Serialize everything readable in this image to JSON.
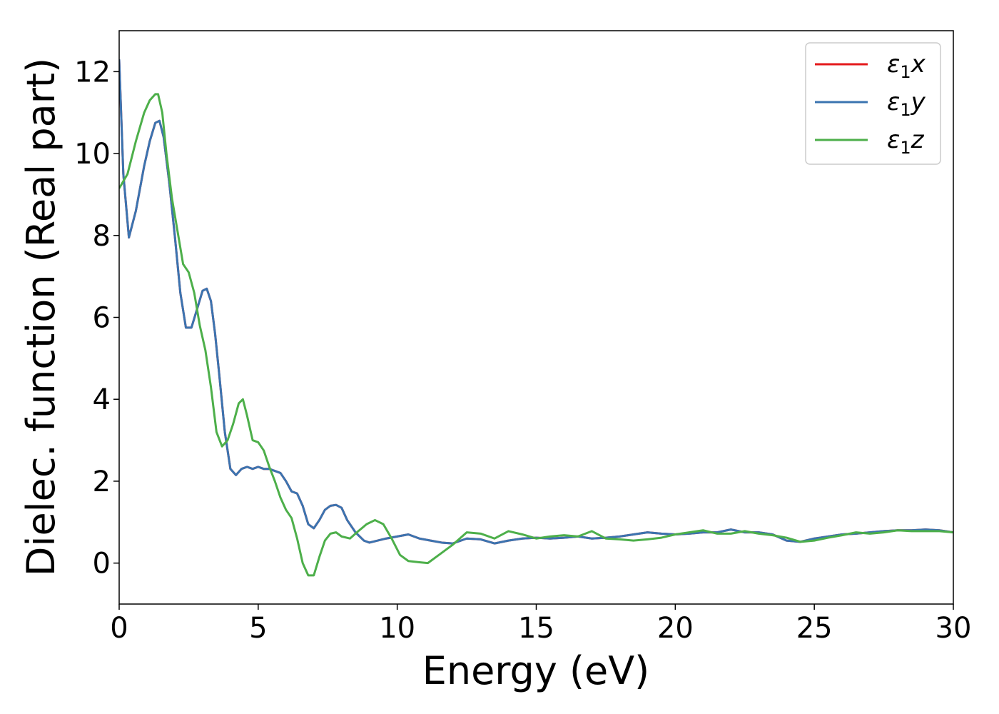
{
  "chart_data": {
    "type": "line",
    "title": "",
    "xlabel": "Energy (eV)",
    "ylabel": "Dielec. function (Real part)",
    "xlim": [
      0,
      30
    ],
    "ylim": [
      -1,
      13
    ],
    "xticks": [
      0,
      5,
      10,
      15,
      20,
      25,
      30
    ],
    "yticks": [
      0,
      2,
      4,
      6,
      8,
      10,
      12
    ],
    "grid": false,
    "legend_position": "top-right",
    "series": [
      {
        "name": "ε1x",
        "legend": {
          "base": "ε",
          "sub": "1",
          "var": "x"
        },
        "color": "#e41a1c",
        "x": [
          0,
          0.15,
          0.35,
          0.6,
          0.9,
          1.1,
          1.3,
          1.45,
          1.6,
          1.8,
          2.0,
          2.2,
          2.4,
          2.6,
          2.8,
          3.0,
          3.15,
          3.3,
          3.45,
          3.6,
          3.8,
          4.0,
          4.2,
          4.4,
          4.6,
          4.8,
          5.0,
          5.2,
          5.4,
          5.6,
          5.8,
          6.0,
          6.2,
          6.4,
          6.6,
          6.8,
          7.0,
          7.2,
          7.4,
          7.6,
          7.8,
          8.0,
          8.2,
          8.5,
          8.8,
          9.0,
          9.3,
          9.6,
          10.0,
          10.4,
          10.8,
          11.2,
          11.6,
          12.0,
          12.5,
          13.0,
          13.5,
          14.0,
          14.5,
          15.0,
          15.5,
          16.0,
          16.5,
          17.0,
          17.5,
          18.0,
          18.5,
          19.0,
          19.5,
          20.0,
          20.5,
          21.0,
          21.5,
          22.0,
          22.5,
          23.0,
          23.5,
          24.0,
          24.5,
          25.0,
          25.5,
          26.0,
          26.5,
          27.0,
          27.5,
          28.0,
          28.5,
          29.0,
          29.5,
          30.0
        ],
        "y": [
          12.3,
          9.5,
          7.95,
          8.6,
          9.7,
          10.3,
          10.75,
          10.8,
          10.4,
          9.3,
          8.0,
          6.6,
          5.75,
          5.75,
          6.2,
          6.65,
          6.7,
          6.4,
          5.6,
          4.6,
          3.2,
          2.3,
          2.15,
          2.3,
          2.35,
          2.3,
          2.35,
          2.3,
          2.3,
          2.25,
          2.2,
          2.0,
          1.75,
          1.7,
          1.4,
          0.95,
          0.85,
          1.05,
          1.3,
          1.4,
          1.42,
          1.35,
          1.05,
          0.75,
          0.55,
          0.5,
          0.55,
          0.6,
          0.65,
          0.7,
          0.6,
          0.55,
          0.5,
          0.48,
          0.6,
          0.58,
          0.48,
          0.55,
          0.6,
          0.62,
          0.6,
          0.62,
          0.65,
          0.6,
          0.62,
          0.65,
          0.7,
          0.75,
          0.72,
          0.7,
          0.72,
          0.75,
          0.75,
          0.82,
          0.75,
          0.75,
          0.7,
          0.55,
          0.52,
          0.6,
          0.65,
          0.7,
          0.72,
          0.75,
          0.78,
          0.8,
          0.8,
          0.82,
          0.8,
          0.75
        ]
      },
      {
        "name": "ε1y",
        "legend": {
          "base": "ε",
          "sub": "1",
          "var": "y"
        },
        "color": "#3b74b0",
        "x": [
          0,
          0.15,
          0.35,
          0.6,
          0.9,
          1.1,
          1.3,
          1.45,
          1.6,
          1.8,
          2.0,
          2.2,
          2.4,
          2.6,
          2.8,
          3.0,
          3.15,
          3.3,
          3.45,
          3.6,
          3.8,
          4.0,
          4.2,
          4.4,
          4.6,
          4.8,
          5.0,
          5.2,
          5.4,
          5.6,
          5.8,
          6.0,
          6.2,
          6.4,
          6.6,
          6.8,
          7.0,
          7.2,
          7.4,
          7.6,
          7.8,
          8.0,
          8.2,
          8.5,
          8.8,
          9.0,
          9.3,
          9.6,
          10.0,
          10.4,
          10.8,
          11.2,
          11.6,
          12.0,
          12.5,
          13.0,
          13.5,
          14.0,
          14.5,
          15.0,
          15.5,
          16.0,
          16.5,
          17.0,
          17.5,
          18.0,
          18.5,
          19.0,
          19.5,
          20.0,
          20.5,
          21.0,
          21.5,
          22.0,
          22.5,
          23.0,
          23.5,
          24.0,
          24.5,
          25.0,
          25.5,
          26.0,
          26.5,
          27.0,
          27.5,
          28.0,
          28.5,
          29.0,
          29.5,
          30.0
        ],
        "y": [
          12.3,
          9.5,
          7.95,
          8.6,
          9.7,
          10.3,
          10.75,
          10.8,
          10.4,
          9.3,
          8.0,
          6.6,
          5.75,
          5.75,
          6.2,
          6.65,
          6.7,
          6.4,
          5.6,
          4.6,
          3.2,
          2.3,
          2.15,
          2.3,
          2.35,
          2.3,
          2.35,
          2.3,
          2.3,
          2.25,
          2.2,
          2.0,
          1.75,
          1.7,
          1.4,
          0.95,
          0.85,
          1.05,
          1.3,
          1.4,
          1.42,
          1.35,
          1.05,
          0.75,
          0.55,
          0.5,
          0.55,
          0.6,
          0.65,
          0.7,
          0.6,
          0.55,
          0.5,
          0.48,
          0.6,
          0.58,
          0.48,
          0.55,
          0.6,
          0.62,
          0.6,
          0.62,
          0.65,
          0.6,
          0.62,
          0.65,
          0.7,
          0.75,
          0.72,
          0.7,
          0.72,
          0.75,
          0.75,
          0.82,
          0.75,
          0.75,
          0.7,
          0.55,
          0.52,
          0.6,
          0.65,
          0.7,
          0.72,
          0.75,
          0.78,
          0.8,
          0.8,
          0.82,
          0.8,
          0.75
        ]
      },
      {
        "name": "ε1z",
        "legend": {
          "base": "ε",
          "sub": "1",
          "var": "z"
        },
        "color": "#4daf4a",
        "x": [
          0,
          0.3,
          0.6,
          0.9,
          1.1,
          1.3,
          1.4,
          1.55,
          1.7,
          1.9,
          2.1,
          2.3,
          2.5,
          2.7,
          2.9,
          3.1,
          3.3,
          3.5,
          3.7,
          3.9,
          4.1,
          4.3,
          4.45,
          4.6,
          4.8,
          5.0,
          5.2,
          5.4,
          5.6,
          5.8,
          6.0,
          6.2,
          6.4,
          6.6,
          6.8,
          7.0,
          7.2,
          7.4,
          7.6,
          7.8,
          8.0,
          8.3,
          8.6,
          8.9,
          9.2,
          9.5,
          9.8,
          10.1,
          10.4,
          10.8,
          11.1,
          11.5,
          12.0,
          12.5,
          13.0,
          13.5,
          14.0,
          14.5,
          15.0,
          15.5,
          16.0,
          16.5,
          17.0,
          17.5,
          18.0,
          18.5,
          19.0,
          19.5,
          20.0,
          20.5,
          21.0,
          21.5,
          22.0,
          22.5,
          23.0,
          23.5,
          24.0,
          24.5,
          25.0,
          25.5,
          26.0,
          26.5,
          27.0,
          27.5,
          28.0,
          28.5,
          29.0,
          29.5,
          30.0
        ],
        "y": [
          9.15,
          9.5,
          10.3,
          11.0,
          11.3,
          11.45,
          11.45,
          11.0,
          10.0,
          8.9,
          8.1,
          7.3,
          7.1,
          6.6,
          5.8,
          5.2,
          4.3,
          3.2,
          2.85,
          3.0,
          3.4,
          3.9,
          4.0,
          3.6,
          3.0,
          2.95,
          2.75,
          2.35,
          2.0,
          1.6,
          1.3,
          1.1,
          0.6,
          0.0,
          -0.3,
          -0.3,
          0.15,
          0.55,
          0.72,
          0.75,
          0.65,
          0.6,
          0.78,
          0.95,
          1.05,
          0.95,
          0.6,
          0.2,
          0.05,
          0.02,
          0.0,
          0.2,
          0.45,
          0.75,
          0.72,
          0.6,
          0.78,
          0.7,
          0.6,
          0.65,
          0.68,
          0.65,
          0.78,
          0.6,
          0.58,
          0.55,
          0.58,
          0.62,
          0.7,
          0.75,
          0.8,
          0.72,
          0.72,
          0.78,
          0.72,
          0.68,
          0.62,
          0.52,
          0.55,
          0.62,
          0.68,
          0.75,
          0.72,
          0.75,
          0.8,
          0.78,
          0.78,
          0.78,
          0.75
        ]
      }
    ]
  }
}
